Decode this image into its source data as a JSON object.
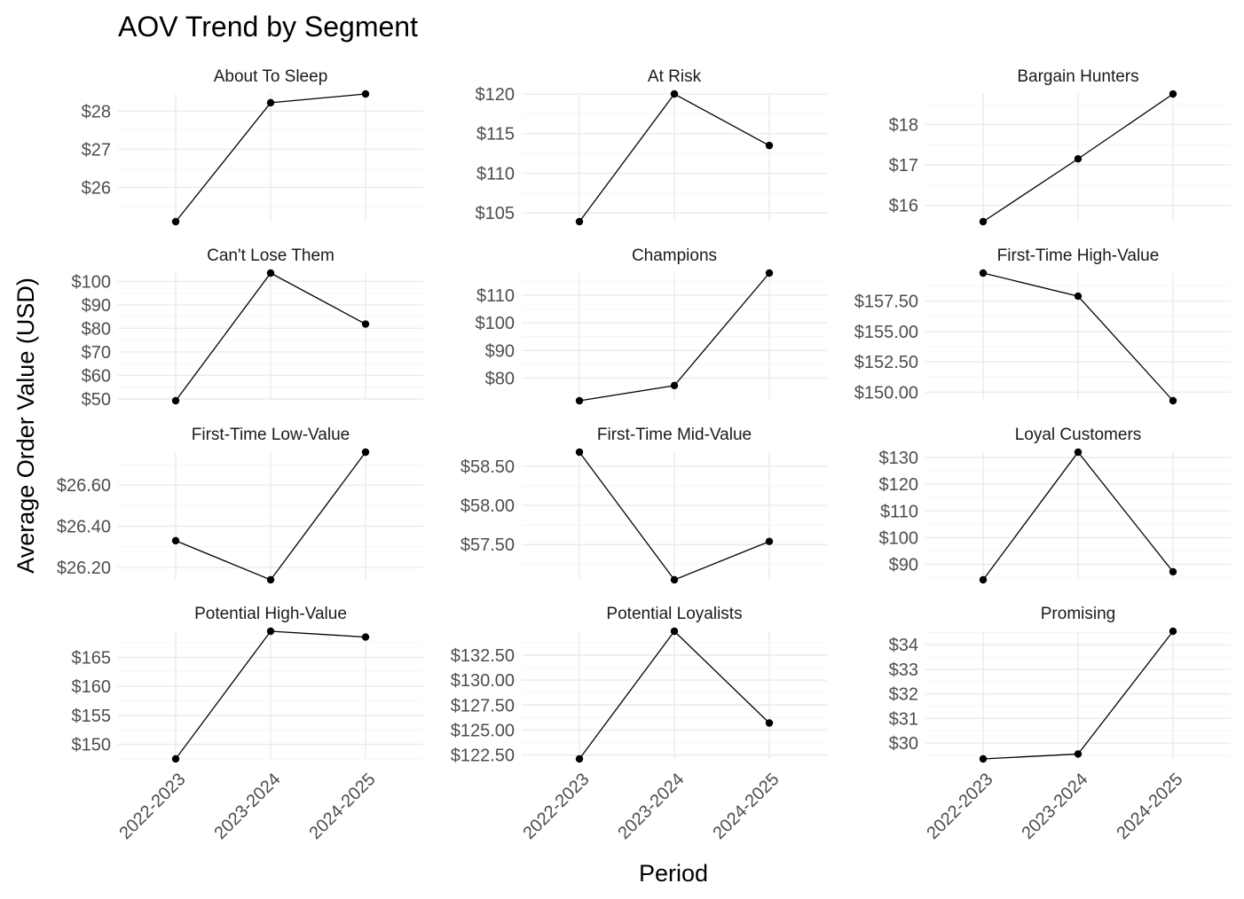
{
  "chart_data": {
    "type": "line",
    "title": "AOV Trend by Segment",
    "xlabel": "Period",
    "ylabel": "Average Order Value (USD)",
    "categories": [
      "2022-2023",
      "2023-2024",
      "2024-2025"
    ],
    "facet_layout": {
      "rows": 4,
      "cols": 3
    },
    "grid": true,
    "panels": [
      {
        "name": "About To Sleep",
        "values": [
          25.1,
          28.22,
          28.45
        ],
        "ylim": [
          25.1,
          28.45
        ],
        "ticks": [
          26,
          27,
          28
        ],
        "tick_labels": [
          "$26",
          "$27",
          "$28"
        ]
      },
      {
        "name": "At Risk",
        "values": [
          103.9,
          120.0,
          113.5
        ],
        "ylim": [
          103.9,
          120.0
        ],
        "ticks": [
          105,
          110,
          115,
          120
        ],
        "tick_labels": [
          "$105",
          "$110",
          "$115",
          "$120"
        ]
      },
      {
        "name": "Bargain Hunters",
        "values": [
          15.6,
          17.15,
          18.75
        ],
        "ylim": [
          15.6,
          18.75
        ],
        "ticks": [
          16,
          17,
          18
        ],
        "tick_labels": [
          "$16",
          "$17",
          "$18"
        ]
      },
      {
        "name": "Can't Lose Them",
        "values": [
          49.2,
          103.5,
          81.8
        ],
        "ylim": [
          49.2,
          103.5
        ],
        "ticks": [
          50,
          60,
          70,
          80,
          90,
          100
        ],
        "tick_labels": [
          "$50",
          "$60",
          "$70",
          "$80",
          "$90",
          "$100"
        ]
      },
      {
        "name": "Champions",
        "values": [
          71.8,
          77.3,
          118.0
        ],
        "ylim": [
          71.8,
          118.0
        ],
        "ticks": [
          80,
          90,
          100,
          110
        ],
        "tick_labels": [
          "$80",
          "$90",
          "$100",
          "$110"
        ]
      },
      {
        "name": "First-Time High-Value",
        "values": [
          159.8,
          157.9,
          149.3
        ],
        "ylim": [
          149.3,
          159.8
        ],
        "ticks": [
          150,
          152.5,
          155,
          157.5
        ],
        "tick_labels": [
          "$150.00",
          "$152.50",
          "$155.00",
          "$157.50"
        ]
      },
      {
        "name": "First-Time Low-Value",
        "values": [
          26.33,
          26.14,
          26.76
        ],
        "ylim": [
          26.14,
          26.76
        ],
        "ticks": [
          26.2,
          26.4,
          26.6
        ],
        "tick_labels": [
          "$26.20",
          "$26.40",
          "$26.60"
        ]
      },
      {
        "name": "First-Time Mid-Value",
        "values": [
          58.68,
          57.05,
          57.54
        ],
        "ylim": [
          57.05,
          58.68
        ],
        "ticks": [
          57.5,
          58.0,
          58.5
        ],
        "tick_labels": [
          "$57.50",
          "$58.00",
          "$58.50"
        ]
      },
      {
        "name": "Loyal Customers",
        "values": [
          84.2,
          132.0,
          87.2
        ],
        "ylim": [
          84.2,
          132.0
        ],
        "ticks": [
          90,
          100,
          110,
          120,
          130
        ],
        "tick_labels": [
          "$90",
          "$100",
          "$110",
          "$120",
          "$130"
        ]
      },
      {
        "name": "Potential High-Value",
        "values": [
          147.5,
          169.5,
          168.5
        ],
        "ylim": [
          147.5,
          169.5
        ],
        "ticks": [
          150,
          155,
          160,
          165
        ],
        "tick_labels": [
          "$150",
          "$155",
          "$160",
          "$165"
        ]
      },
      {
        "name": "Potential Loyalists",
        "values": [
          122.1,
          134.9,
          125.7
        ],
        "ylim": [
          122.1,
          134.9
        ],
        "ticks": [
          122.5,
          125,
          127.5,
          130,
          132.5
        ],
        "tick_labels": [
          "$122.50",
          "$125.00",
          "$127.50",
          "$130.00",
          "$132.50"
        ]
      },
      {
        "name": "Promising",
        "values": [
          29.35,
          29.55,
          34.55
        ],
        "ylim": [
          29.35,
          34.55
        ],
        "ticks": [
          30,
          31,
          32,
          33,
          34
        ],
        "tick_labels": [
          "$30",
          "$31",
          "$32",
          "$33",
          "$34"
        ]
      }
    ]
  }
}
